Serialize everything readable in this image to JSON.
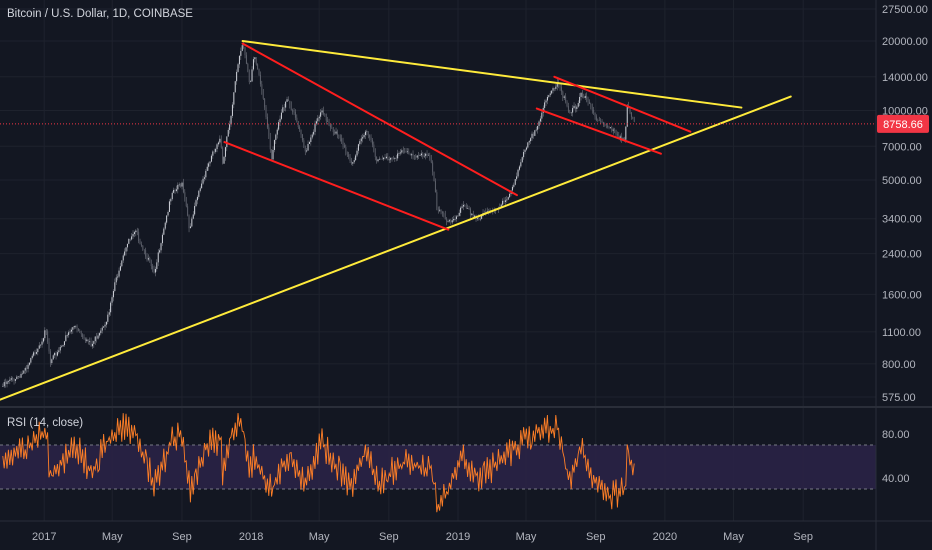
{
  "chart_data": [
    {
      "type": "candlestick",
      "title": "Bitcoin / U.S. Dollar, 1D, COINBASE",
      "scale": "log",
      "ylim": [
        500,
        29000
      ],
      "y_ticks": [
        "27500.00",
        "20000.00",
        "14000.00",
        "10000.00",
        "7000.00",
        "5000.00",
        "3400.00",
        "2400.00",
        "1600.00",
        "1100.00",
        "800.00",
        "575.00"
      ],
      "x_ticks": [
        "2017",
        "May",
        "Sep",
        "2018",
        "May",
        "Sep",
        "2019",
        "May",
        "Sep",
        "2020",
        "May",
        "Sep"
      ],
      "last_price": "8758.66",
      "last_price_color": "#f23645",
      "price_path": [
        [
          "2016-10-20",
          640
        ],
        [
          "2016-12-01",
          750
        ],
        [
          "2017-01-04",
          1100
        ],
        [
          "2017-01-12",
          800
        ],
        [
          "2017-02-25",
          1180
        ],
        [
          "2017-03-25",
          950
        ],
        [
          "2017-04-25",
          1300
        ],
        [
          "2017-05-25",
          2600
        ],
        [
          "2017-06-12",
          2950
        ],
        [
          "2017-07-15",
          1900
        ],
        [
          "2017-08-15",
          4300
        ],
        [
          "2017-09-01",
          4900
        ],
        [
          "2017-09-15",
          3000
        ],
        [
          "2017-10-15",
          5700
        ],
        [
          "2017-11-08",
          7400
        ],
        [
          "2017-11-12",
          5900
        ],
        [
          "2017-11-28",
          10000
        ],
        [
          "2017-12-17",
          19700
        ],
        [
          "2017-12-30",
          13000
        ],
        [
          "2018-01-06",
          17000
        ],
        [
          "2018-02-06",
          6200
        ],
        [
          "2018-03-05",
          11500
        ],
        [
          "2018-04-06",
          6600
        ],
        [
          "2018-05-05",
          9800
        ],
        [
          "2018-06-28",
          5900
        ],
        [
          "2018-07-25",
          8300
        ],
        [
          "2018-08-12",
          6000
        ],
        [
          "2018-09-30",
          6600
        ],
        [
          "2018-10-30",
          6300
        ],
        [
          "2018-11-14",
          6300
        ],
        [
          "2018-11-25",
          3800
        ],
        [
          "2018-12-15",
          3200
        ],
        [
          "2019-01-10",
          3800
        ],
        [
          "2019-02-07",
          3400
        ],
        [
          "2019-03-31",
          4100
        ],
        [
          "2019-05-14",
          7900
        ],
        [
          "2019-06-26",
          13500
        ],
        [
          "2019-07-16",
          9500
        ],
        [
          "2019-07-29",
          10500
        ],
        [
          "2019-08-06",
          12000
        ],
        [
          "2019-08-29",
          9600
        ],
        [
          "2019-09-25",
          8300
        ],
        [
          "2019-10-23",
          7500
        ],
        [
          "2019-10-26",
          10300
        ],
        [
          "2019-11-08",
          8758.66
        ]
      ],
      "trendlines": [
        {
          "color": "#ffeb3b",
          "from": [
            "2017-12-17",
            20000
          ],
          "to": [
            "2020-05-15",
            10300
          ]
        },
        {
          "color": "#ffeb3b",
          "from": [
            "2016-10-15",
            560
          ],
          "to": [
            "2020-08-10",
            11500
          ]
        },
        {
          "color": "#ff1e1e",
          "from": [
            "2017-12-17",
            19500
          ],
          "to": [
            "2019-04-15",
            4300
          ]
        },
        {
          "color": "#ff1e1e",
          "from": [
            "2017-11-15",
            7300
          ],
          "to": [
            "2018-12-15",
            3050
          ]
        },
        {
          "color": "#ff1e1e",
          "from": [
            "2019-06-20",
            14000
          ],
          "to": [
            "2020-02-15",
            8100
          ]
        },
        {
          "color": "#ff1e1e",
          "from": [
            "2019-05-20",
            10200
          ],
          "to": [
            "2019-12-25",
            6500
          ]
        }
      ]
    },
    {
      "type": "line",
      "title": "RSI (14, close)",
      "ylim": [
        0,
        100
      ],
      "y_ticks": [
        "80.00",
        "40.00"
      ],
      "band": [
        30,
        70
      ],
      "line_color": "#ff7f27",
      "band_color": "#2a2246",
      "rsi_path": [
        [
          "2016-10-20",
          60
        ],
        [
          "2016-12-01",
          65
        ],
        [
          "2017-01-04",
          85
        ],
        [
          "2017-01-12",
          40
        ],
        [
          "2017-02-25",
          70
        ],
        [
          "2017-03-25",
          45
        ],
        [
          "2017-04-25",
          75
        ],
        [
          "2017-05-25",
          88
        ],
        [
          "2017-06-12",
          80
        ],
        [
          "2017-07-15",
          35
        ],
        [
          "2017-08-15",
          75
        ],
        [
          "2017-09-01",
          80
        ],
        [
          "2017-09-15",
          30
        ],
        [
          "2017-10-15",
          70
        ],
        [
          "2017-11-08",
          75
        ],
        [
          "2017-11-12",
          45
        ],
        [
          "2017-11-28",
          85
        ],
        [
          "2017-12-17",
          90
        ],
        [
          "2017-12-30",
          45
        ],
        [
          "2018-01-06",
          60
        ],
        [
          "2018-02-06",
          28
        ],
        [
          "2018-03-05",
          60
        ],
        [
          "2018-04-06",
          35
        ],
        [
          "2018-05-05",
          72
        ],
        [
          "2018-06-28",
          30
        ],
        [
          "2018-07-25",
          70
        ],
        [
          "2018-08-12",
          35
        ],
        [
          "2018-09-30",
          55
        ],
        [
          "2018-10-30",
          48
        ],
        [
          "2018-11-14",
          50
        ],
        [
          "2018-11-25",
          12
        ],
        [
          "2018-12-15",
          30
        ],
        [
          "2019-01-10",
          60
        ],
        [
          "2019-02-07",
          40
        ],
        [
          "2019-03-31",
          62
        ],
        [
          "2019-05-14",
          82
        ],
        [
          "2019-06-26",
          85
        ],
        [
          "2019-07-16",
          38
        ],
        [
          "2019-07-29",
          55
        ],
        [
          "2019-08-06",
          68
        ],
        [
          "2019-08-29",
          40
        ],
        [
          "2019-09-25",
          22
        ],
        [
          "2019-10-23",
          30
        ],
        [
          "2019-10-26",
          68
        ],
        [
          "2019-11-08",
          48
        ]
      ]
    }
  ]
}
